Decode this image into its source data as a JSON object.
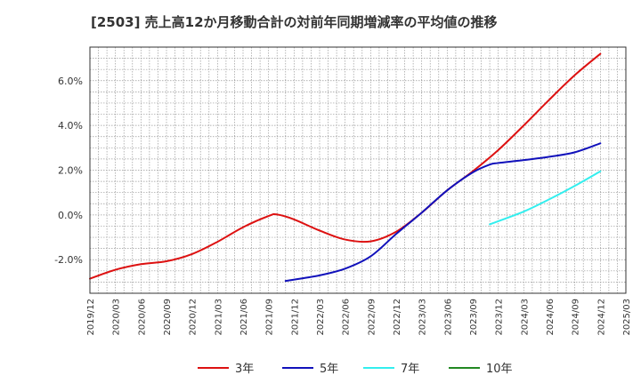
{
  "chart_data": {
    "type": "line",
    "title": "[2503]  売上高12か月移動合計の対前年同期増減率の平均値の推移",
    "xlabel": "",
    "ylabel": "",
    "x_ticks": [
      "2019/12",
      "2020/03",
      "2020/06",
      "2020/09",
      "2020/12",
      "2021/03",
      "2021/06",
      "2021/09",
      "2021/12",
      "2022/03",
      "2022/06",
      "2022/09",
      "2022/12",
      "2023/03",
      "2023/06",
      "2023/09",
      "2023/12",
      "2024/03",
      "2024/06",
      "2024/09",
      "2024/12",
      "2025/03"
    ],
    "y_ticks": [
      "-2.0%",
      "0.0%",
      "2.0%",
      "4.0%",
      "6.0%"
    ],
    "ylim": [
      -3.5,
      7.5
    ],
    "y_tick_values": [
      -2,
      0,
      2,
      4,
      6
    ],
    "grid": true,
    "legend_position": "bottom",
    "series": [
      {
        "name": "3年",
        "color": "#dd1111",
        "points": [
          [
            "2019/12",
            -2.85
          ],
          [
            "2020/03",
            -2.45
          ],
          [
            "2020/06",
            -2.2
          ],
          [
            "2020/09",
            -2.07
          ],
          [
            "2020/12",
            -1.75
          ],
          [
            "2021/03",
            -1.2
          ],
          [
            "2021/06",
            -0.55
          ],
          [
            "2021/09",
            -0.05
          ],
          [
            "2021/10",
            0.02
          ],
          [
            "2021/12",
            -0.2
          ],
          [
            "2022/03",
            -0.7
          ],
          [
            "2022/06",
            -1.1
          ],
          [
            "2022/09",
            -1.18
          ],
          [
            "2022/12",
            -0.75
          ],
          [
            "2023/03",
            0.1
          ],
          [
            "2023/06",
            1.1
          ],
          [
            "2023/09",
            1.95
          ],
          [
            "2023/12",
            2.9
          ],
          [
            "2024/03",
            4.0
          ],
          [
            "2024/06",
            5.15
          ],
          [
            "2024/09",
            6.25
          ],
          [
            "2024/12",
            7.2
          ]
        ]
      },
      {
        "name": "5年",
        "color": "#1111bb",
        "points": [
          [
            "2021/11",
            -2.95
          ],
          [
            "2022/03",
            -2.7
          ],
          [
            "2022/06",
            -2.4
          ],
          [
            "2022/09",
            -1.85
          ],
          [
            "2022/12",
            -0.85
          ],
          [
            "2023/03",
            0.1
          ],
          [
            "2023/06",
            1.1
          ],
          [
            "2023/09",
            1.9
          ],
          [
            "2023/11",
            2.25
          ],
          [
            "2023/12",
            2.32
          ],
          [
            "2024/03",
            2.45
          ],
          [
            "2024/06",
            2.6
          ],
          [
            "2024/09",
            2.8
          ],
          [
            "2024/12",
            3.2
          ]
        ]
      },
      {
        "name": "7年",
        "color": "#33eeee",
        "points": [
          [
            "2023/11",
            -0.42
          ],
          [
            "2024/03",
            0.15
          ],
          [
            "2024/06",
            0.7
          ],
          [
            "2024/09",
            1.3
          ],
          [
            "2024/12",
            1.95
          ]
        ]
      },
      {
        "name": "10年",
        "color": "#228822",
        "points": []
      }
    ]
  }
}
